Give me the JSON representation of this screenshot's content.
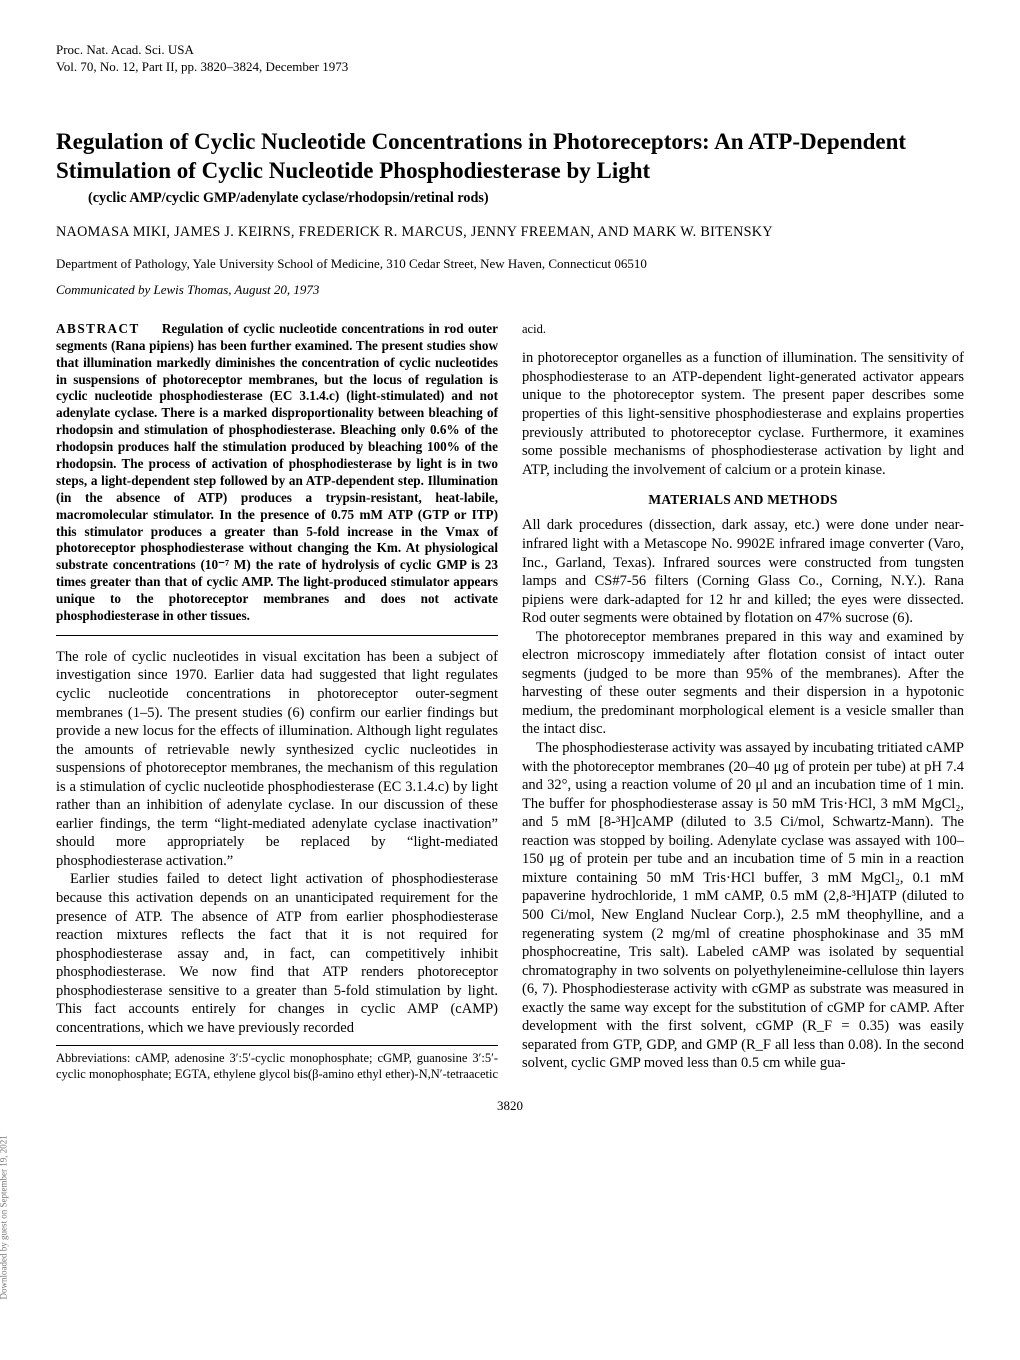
{
  "journal": {
    "line1": "Proc. Nat. Acad. Sci. USA",
    "line2": "Vol. 70, No. 12, Part II, pp. 3820–3824, December 1973"
  },
  "title": "Regulation of Cyclic Nucleotide Concentrations in Photoreceptors: An ATP-Dependent Stimulation of Cyclic Nucleotide Phosphodiesterase by Light",
  "subtitle": "(cyclic AMP/cyclic GMP/adenylate cyclase/rhodopsin/retinal rods)",
  "authors": "NAOMASA MIKI, JAMES J. KEIRNS, FREDERICK R. MARCUS, JENNY FREEMAN, AND MARK W. BITENSKY",
  "affiliation": "Department of Pathology, Yale University School of Medicine, 310 Cedar Street, New Haven, Connecticut 06510",
  "communicated": "Communicated by Lewis Thomas, August 20, 1973",
  "abstract_lead": "ABSTRACT",
  "abstract": "Regulation of cyclic nucleotide concentrations in rod outer segments (Rana pipiens) has been further examined. The present studies show that illumination markedly diminishes the concentration of cyclic nucleotides in suspensions of photoreceptor membranes, but the locus of regulation is cyclic nucleotide phosphodiesterase (EC 3.1.4.c) (light-stimulated) and not adenylate cyclase. There is a marked disproportionality between bleaching of rhodopsin and stimulation of phosphodiesterase. Bleaching only 0.6% of the rhodopsin produces half the stimulation produced by bleaching 100% of the rhodopsin. The process of activation of phosphodiesterase by light is in two steps, a light-dependent step followed by an ATP-dependent step. Illumination (in the absence of ATP) produces a trypsin-resistant, heat-labile, macromolecular stimulator. In the presence of 0.75 mM ATP (GTP or ITP) this stimulator produces a greater than 5-fold increase in the Vmax of photoreceptor phosphodiesterase without changing the Km. At physiological substrate concentrations (10⁻⁷ M) the rate of hydrolysis of cyclic GMP is 23 times greater than that of cyclic AMP. The light-produced stimulator appears unique to the photoreceptor membranes and does not activate phosphodiesterase in other tissues.",
  "intro": {
    "p1": "The role of cyclic nucleotides in visual excitation has been a subject of investigation since 1970. Earlier data had suggested that light regulates cyclic nucleotide concentrations in photoreceptor outer-segment membranes (1–5). The present studies (6) confirm our earlier findings but provide a new locus for the effects of illumination. Although light regulates the amounts of retrievable newly synthesized cyclic nucleotides in suspensions of photoreceptor membranes, the mechanism of this regulation is a stimulation of cyclic nucleotide phosphodiesterase (EC 3.1.4.c) by light rather than an inhibition of adenylate cyclase. In our discussion of these earlier findings, the term “light-mediated adenylate cyclase inactivation” should more appropriately be replaced by “light-mediated phosphodiesterase activation.”",
    "p2": "Earlier studies failed to detect light activation of phosphodiesterase because this activation depends on an unanticipated requirement for the presence of ATP. The absence of ATP from earlier phosphodiesterase reaction mixtures reflects the fact that it is not required for phosphodiesterase assay and, in fact, can competitively inhibit phosphodiesterase. We now find that ATP renders photoreceptor phosphodiesterase sensitive to a greater than 5-fold stimulation by light. This fact accounts entirely for changes in cyclic AMP (cAMP) concentrations, which we have previously recorded"
  },
  "abbreviations": "Abbreviations: cAMP, adenosine 3′:5′-cyclic monophosphate; cGMP, guanosine 3′:5′-cyclic monophosphate; EGTA, ethylene glycol bis(β-amino ethyl ether)-N,N′-tetraacetic acid.",
  "col2": {
    "p1": "in photoreceptor organelles as a function of illumination. The sensitivity of phosphodiesterase to an ATP-dependent light-generated activator appears unique to the photoreceptor system. The present paper describes some properties of this light-sensitive phosphodiesterase and explains properties previously attributed to photoreceptor cyclase. Furthermore, it examines some possible mechanisms of phosphodiesterase activation by light and ATP, including the involvement of calcium or a protein kinase."
  },
  "materials_heading": "MATERIALS AND METHODS",
  "materials": {
    "p1": "All dark procedures (dissection, dark assay, etc.) were done under near-infrared light with a Metascope No. 9902E infrared image converter (Varo, Inc., Garland, Texas). Infrared sources were constructed from tungsten lamps and CS#7-56 filters (Corning Glass Co., Corning, N.Y.). Rana pipiens were dark-adapted for 12 hr and killed; the eyes were dissected. Rod outer segments were obtained by flotation on 47% sucrose (6).",
    "p2": "The photoreceptor membranes prepared in this way and examined by electron microscopy immediately after flotation consist of intact outer segments (judged to be more than 95% of the membranes). After the harvesting of these outer segments and their dispersion in a hypotonic medium, the predominant morphological element is a vesicle smaller than the intact disc.",
    "p3": "The phosphodiesterase activity was assayed by incubating tritiated cAMP with the photoreceptor membranes (20–40 μg of protein per tube) at pH 7.4 and 32°, using a reaction volume of 20 μl and an incubation time of 1 min. The buffer for phosphodiesterase assay is 50 mM Tris·HCl, 3 mM MgCl₂, and 5 mM [8-³H]cAMP (diluted to 3.5 Ci/mol, Schwartz-Mann). The reaction was stopped by boiling. Adenylate cyclase was assayed with 100–150 μg of protein per tube and an incubation time of 5 min in a reaction mixture containing 50 mM Tris·HCl buffer, 3 mM MgCl₂, 0.1 mM papaverine hydrochloride, 1 mM cAMP, 0.5 mM (2,8-³H]ATP (diluted to 500 Ci/mol, New England Nuclear Corp.), 2.5 mM theophylline, and a regenerating system (2 mg/ml of creatine phosphokinase and 35 mM phosphocreatine, Tris salt). Labeled cAMP was isolated by sequential chromatography in two solvents on polyethyleneimine-cellulose thin layers (6, 7). Phosphodiesterase activity with cGMP as substrate was measured in exactly the same way except for the substitution of cGMP for cAMP. After development with the first solvent, cGMP (R_F = 0.35) was easily separated from GTP, GDP, and GMP (R_F all less than 0.08). In the second solvent, cyclic GMP moved less than 0.5 cm while gua-"
  },
  "page_number": "3820",
  "side_text": "Downloaded by guest on September 19, 2021"
}
